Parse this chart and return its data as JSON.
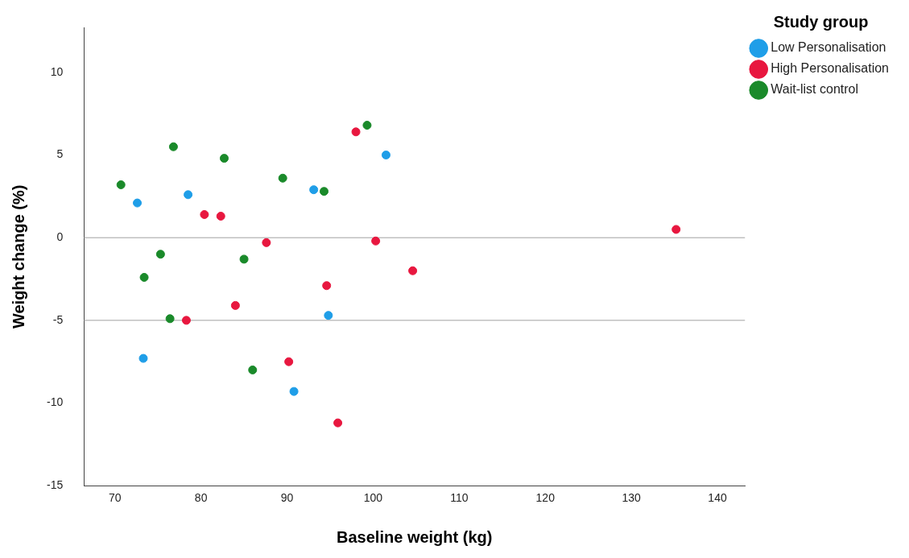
{
  "chart_data": {
    "type": "scatter",
    "xlabel": "Baseline weight (kg)",
    "ylabel": "Weight change (%)",
    "legend_title": "Study group",
    "legend": "top right",
    "grid": false,
    "marker": "circle",
    "xlim": [
      66.4,
      143.2
    ],
    "xticks": [
      70,
      80,
      90,
      100,
      110,
      120,
      130,
      140
    ],
    "ylim": [
      -15,
      12.7
    ],
    "yticks": [
      -15,
      -10,
      -5,
      0,
      5,
      10
    ],
    "ref_lines": [
      {
        "axis": "y",
        "value": 0,
        "color": "#a0a0a0"
      },
      {
        "axis": "y",
        "value": -5,
        "color": "#a0a0a0"
      }
    ],
    "series": [
      {
        "name": "Low Personalisation",
        "color": "#1f9ee8",
        "x": [
          72.6,
          78.5,
          93.1,
          101.5,
          94.8,
          73.3,
          90.8
        ],
        "values": [
          2.1,
          2.6,
          2.9,
          5.0,
          -4.7,
          -7.3,
          -9.3
        ]
      },
      {
        "name": "High Personalisation",
        "color": "#e8173f",
        "x": [
          98.0,
          80.4,
          82.3,
          87.6,
          100.3,
          104.6,
          94.6,
          84.0,
          78.3,
          90.2,
          95.9,
          135.2
        ],
        "values": [
          6.4,
          1.4,
          1.3,
          -0.3,
          -0.2,
          -2.0,
          -2.9,
          -4.1,
          -5.0,
          -7.5,
          -11.2,
          0.5
        ]
      },
      {
        "name": "Wait-list control",
        "color": "#1a8a2a",
        "x": [
          70.7,
          76.8,
          82.7,
          89.5,
          94.3,
          99.3,
          75.3,
          73.4,
          85.0,
          76.4,
          86.0
        ],
        "values": [
          3.2,
          5.5,
          4.8,
          3.6,
          2.8,
          6.8,
          -1.0,
          -2.4,
          -1.3,
          -4.9,
          -8.0
        ]
      }
    ]
  }
}
